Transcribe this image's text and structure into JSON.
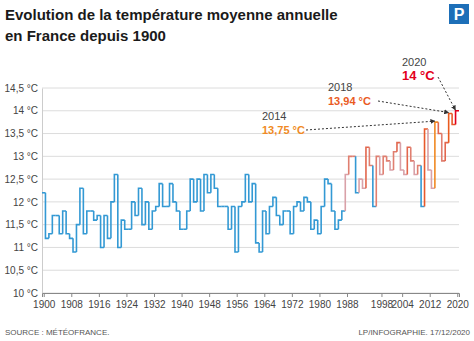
{
  "chart_data": {
    "type": "line",
    "line_style": "step",
    "title": [
      "Evolution de la température moyenne annuelle",
      "en France depuis 1900"
    ],
    "logo": "P",
    "source": "SOURCE : MÉTÉOFRANCE.",
    "credit": "LP/INFOGRAPHIE. 17/12/2020",
    "x": [
      1900,
      1901,
      1902,
      1903,
      1904,
      1905,
      1906,
      1907,
      1908,
      1909,
      1910,
      1911,
      1912,
      1913,
      1914,
      1915,
      1916,
      1917,
      1918,
      1919,
      1920,
      1921,
      1922,
      1923,
      1924,
      1925,
      1926,
      1927,
      1928,
      1929,
      1930,
      1931,
      1932,
      1933,
      1934,
      1935,
      1936,
      1937,
      1938,
      1939,
      1940,
      1941,
      1942,
      1943,
      1944,
      1945,
      1946,
      1947,
      1948,
      1949,
      1950,
      1951,
      1952,
      1953,
      1954,
      1955,
      1956,
      1957,
      1958,
      1959,
      1960,
      1961,
      1962,
      1963,
      1964,
      1965,
      1966,
      1967,
      1968,
      1969,
      1970,
      1971,
      1972,
      1973,
      1974,
      1975,
      1976,
      1977,
      1978,
      1979,
      1980,
      1981,
      1982,
      1983,
      1984,
      1985,
      1986,
      1987,
      1988,
      1989,
      1990,
      1991,
      1992,
      1993,
      1994,
      1995,
      1996,
      1997,
      1998,
      1999,
      2000,
      2001,
      2002,
      2003,
      2004,
      2005,
      2006,
      2007,
      2008,
      2009,
      2010,
      2011,
      2012,
      2013,
      2014,
      2015,
      2016,
      2017,
      2018,
      2019,
      2020
    ],
    "values": [
      12.2,
      11.2,
      11.3,
      11.7,
      11.7,
      11.3,
      11.8,
      11.3,
      11.2,
      10.9,
      11.5,
      12.3,
      11.3,
      11.8,
      11.8,
      11.6,
      11.7,
      11.0,
      11.7,
      11.2,
      12.0,
      12.6,
      11.0,
      11.6,
      11.4,
      11.4,
      12.0,
      11.7,
      12.3,
      11.5,
      12.0,
      11.4,
      11.8,
      11.9,
      12.4,
      11.9,
      11.9,
      12.4,
      12.0,
      11.8,
      11.4,
      11.4,
      11.8,
      12.5,
      12.0,
      12.5,
      11.8,
      12.6,
      12.2,
      12.6,
      12.3,
      11.9,
      11.9,
      11.9,
      11.4,
      11.9,
      10.9,
      11.9,
      12.0,
      12.6,
      12.0,
      12.4,
      11.1,
      10.9,
      11.8,
      11.3,
      11.9,
      12.1,
      11.7,
      11.5,
      11.8,
      11.8,
      11.3,
      11.9,
      12.0,
      11.8,
      12.1,
      12.0,
      11.4,
      11.6,
      11.3,
      11.9,
      12.5,
      12.4,
      11.8,
      11.4,
      11.6,
      11.8,
      12.6,
      13.0,
      13.0,
      12.2,
      12.5,
      12.3,
      13.2,
      12.8,
      11.9,
      13.0,
      12.6,
      13.0,
      12.9,
      12.7,
      13.1,
      13.3,
      12.7,
      12.6,
      13.2,
      12.9,
      12.6,
      12.8,
      11.9,
      13.6,
      12.7,
      12.3,
      13.75,
      13.5,
      12.9,
      13.3,
      13.94,
      13.7,
      14.0
    ],
    "colors": [
      "#3399d4",
      "#3399d4",
      "#3399d4",
      "#3399d4",
      "#3399d4",
      "#3399d4",
      "#3399d4",
      "#3399d4",
      "#3399d4",
      "#3399d4",
      "#3399d4",
      "#3399d4",
      "#3399d4",
      "#3399d4",
      "#3399d4",
      "#3399d4",
      "#3399d4",
      "#3399d4",
      "#3399d4",
      "#3399d4",
      "#3399d4",
      "#3399d4",
      "#3399d4",
      "#3399d4",
      "#3399d4",
      "#3399d4",
      "#3399d4",
      "#3399d4",
      "#3399d4",
      "#3399d4",
      "#3399d4",
      "#3399d4",
      "#3399d4",
      "#3399d4",
      "#3399d4",
      "#3399d4",
      "#3399d4",
      "#3399d4",
      "#3399d4",
      "#3399d4",
      "#3399d4",
      "#3399d4",
      "#3399d4",
      "#3399d4",
      "#3399d4",
      "#3399d4",
      "#3399d4",
      "#3399d4",
      "#3399d4",
      "#3399d4",
      "#3399d4",
      "#3399d4",
      "#3399d4",
      "#3399d4",
      "#3399d4",
      "#3399d4",
      "#3399d4",
      "#3399d4",
      "#3399d4",
      "#3399d4",
      "#3399d4",
      "#3399d4",
      "#3399d4",
      "#3399d4",
      "#3399d4",
      "#3399d4",
      "#3399d4",
      "#3399d4",
      "#3399d4",
      "#3399d4",
      "#3399d4",
      "#3399d4",
      "#3399d4",
      "#3399d4",
      "#3399d4",
      "#3399d4",
      "#3399d4",
      "#3399d4",
      "#3399d4",
      "#3399d4",
      "#3399d4",
      "#3399d4",
      "#3399d4",
      "#3399d4",
      "#3399d4",
      "#3399d4",
      "#3399d4",
      "#3399d4",
      "#d9a1a8",
      "#e07f70",
      "#e07f70",
      "#3399d4",
      "#d9a1a8",
      "#d9a1a8",
      "#e2674e",
      "#e07f70",
      "#3399d4",
      "#e07f70",
      "#d9a1a8",
      "#e07f70",
      "#e07f70",
      "#d9a1a8",
      "#e07f70",
      "#e2674e",
      "#d9a1a8",
      "#d9a1a8",
      "#e2674e",
      "#e07f70",
      "#d9a1a8",
      "#e07f70",
      "#3399d4",
      "#e8592c",
      "#d9a1a8",
      "#d9a1a8",
      "#f08a24",
      "#e2674e",
      "#e07f70",
      "#e2674e",
      "#ea5b1f",
      "#e8592c",
      "#e3001b"
    ],
    "xlim": [
      1899.5,
      2020.5
    ],
    "xticks": [
      1900,
      1908,
      1916,
      1924,
      1932,
      1940,
      1948,
      1956,
      1964,
      1972,
      1980,
      1988,
      1998,
      2004,
      2012,
      2020
    ],
    "ylim": [
      10,
      14.5
    ],
    "yticks": [
      {
        "value": 10,
        "label": "10 °C"
      },
      {
        "value": 10.5,
        "label": "10,5 °C"
      },
      {
        "value": 11,
        "label": "11 °C"
      },
      {
        "value": 11.5,
        "label": "11,5 °C"
      },
      {
        "value": 12,
        "label": "12 °C"
      },
      {
        "value": 12.5,
        "label": "12,5 °C"
      },
      {
        "value": 13,
        "label": "13 °C"
      },
      {
        "value": 13.5,
        "label": "13,5 °C"
      },
      {
        "value": 14,
        "label": "14 °C"
      },
      {
        "value": 14.5,
        "label": "14,5 °C"
      }
    ],
    "grid": true,
    "annotations": [
      {
        "text": "2014",
        "value_text": "13,75 °C",
        "x": 2014,
        "y": 13.75,
        "color": "#f08a24"
      },
      {
        "text": "2018",
        "value_text": "13,94 °C",
        "x": 2018,
        "y": 13.94,
        "color": "#ea5b1f"
      },
      {
        "text": "2020",
        "value_text": "14 °C",
        "x": 2020,
        "y": 14,
        "color": "#e3001b"
      }
    ]
  }
}
